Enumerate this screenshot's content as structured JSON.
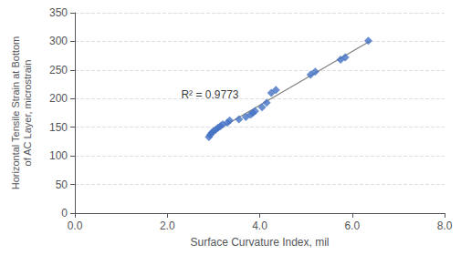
{
  "chart_data": {
    "type": "scatter",
    "xlabel": "Surface Curvature Index, mil",
    "ylabel": "Horizontal Tensile Strain at Bottom\nof AC Layer, microstrain",
    "series": [
      {
        "type": "scatter",
        "marker": "diamond",
        "color": "#4472C4",
        "x": [
          2.9,
          2.93,
          2.96,
          3.0,
          3.05,
          3.1,
          3.15,
          3.2,
          3.3,
          3.35,
          3.55,
          3.7,
          3.8,
          3.85,
          3.9,
          4.05,
          4.15,
          4.25,
          4.35,
          5.1,
          5.2,
          5.75,
          5.85,
          6.35
        ],
        "values": [
          133,
          137,
          140,
          143,
          146,
          149,
          152,
          155,
          158,
          162,
          164,
          168,
          172,
          175,
          178,
          185,
          193,
          210,
          215,
          242,
          247,
          268,
          272,
          301
        ]
      },
      {
        "type": "line",
        "color": "#808080",
        "x": [
          2.85,
          6.4
        ],
        "values": [
          134.45,
          301.02
        ]
      }
    ],
    "annotations": [
      {
        "text": "R² = 0.9773",
        "x": 2.3,
        "y": 198
      }
    ],
    "xlim": [
      0.0,
      8.0
    ],
    "ylim": [
      0,
      350
    ],
    "xticks": [
      {
        "value": 0.0,
        "label": "0.0"
      },
      {
        "value": 2.0,
        "label": "2.0"
      },
      {
        "value": 4.0,
        "label": "4.0"
      },
      {
        "value": 6.0,
        "label": "6.0"
      },
      {
        "value": 8.0,
        "label": "8.0"
      }
    ],
    "yticks": [
      0,
      50,
      100,
      150,
      200,
      250,
      300,
      350
    ],
    "grid": true
  }
}
